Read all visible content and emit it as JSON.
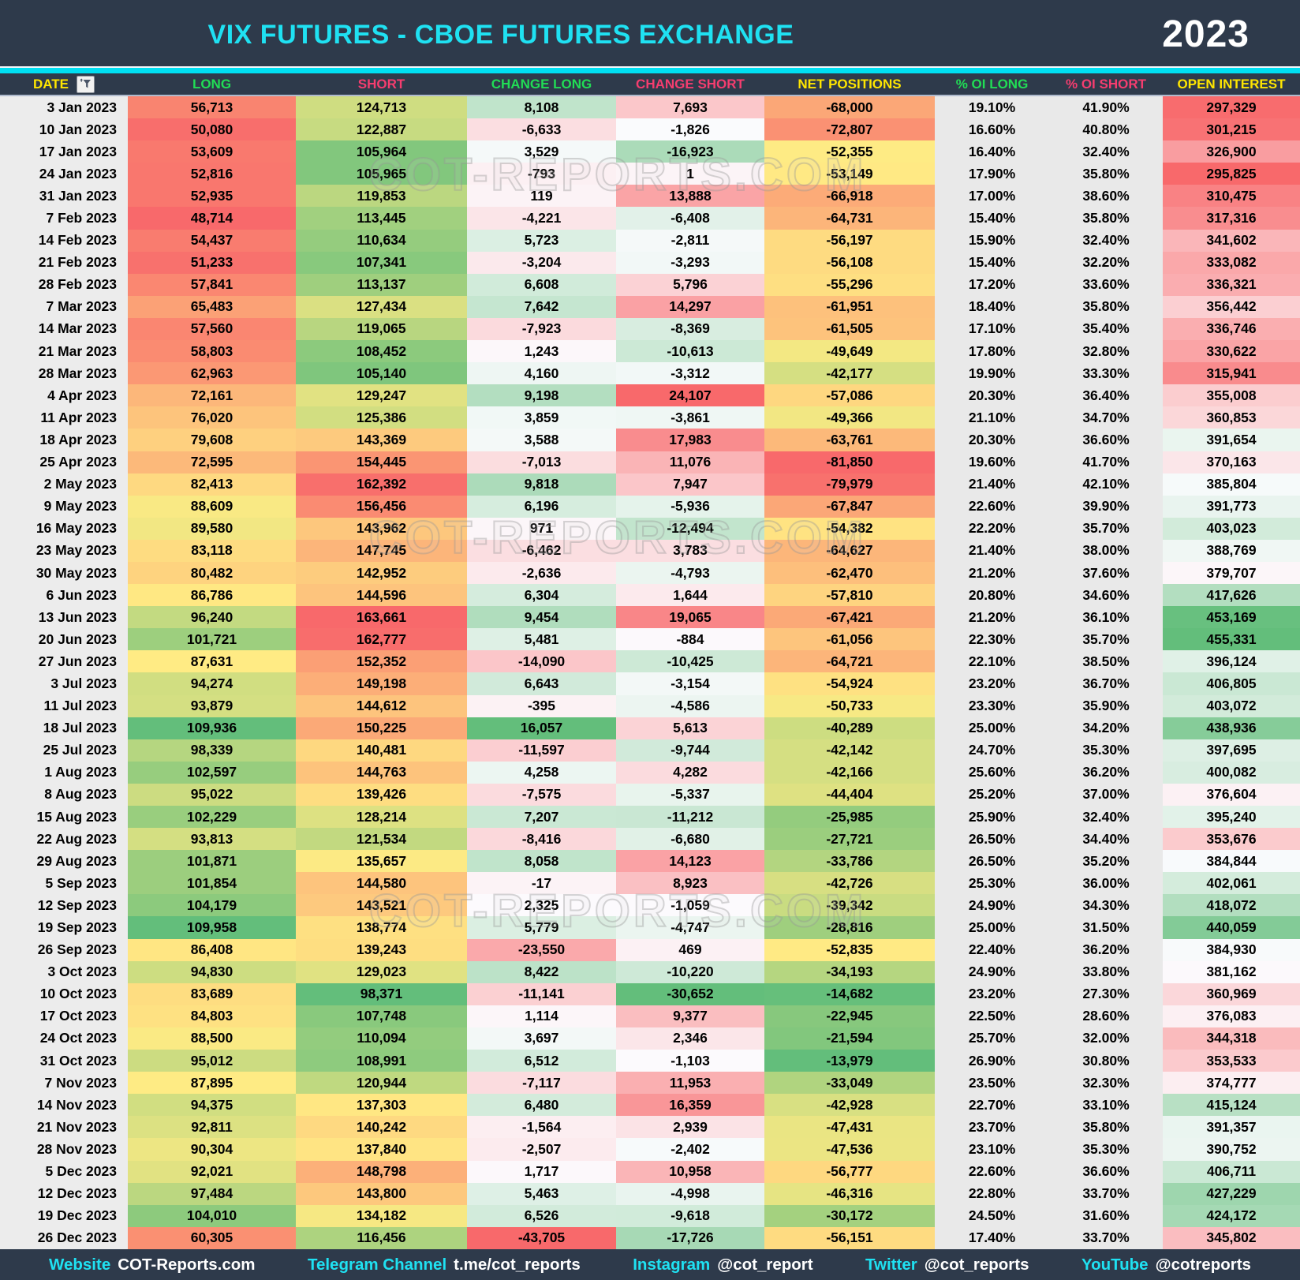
{
  "header": {
    "title": "VIX FUTURES - CBOE FUTURES EXCHANGE",
    "year": "2023"
  },
  "watermark": {
    "text": "COT-REPORTS.COM"
  },
  "colors": {
    "band": "#2E3A4B",
    "accent_cyan": "#00DFF2",
    "header_yellow": "#FFE600",
    "header_green": "#21DD55",
    "header_pink": "#F53D6F",
    "scale_red": "#F8696B",
    "scale_yellow": "#FFEB84",
    "scale_green": "#63BE7B",
    "scale_white": "#FCFCFF"
  },
  "columns": [
    {
      "key": "date",
      "label": "DATE",
      "color": "#FFE600",
      "scale": "none",
      "has_filter": true
    },
    {
      "key": "long",
      "label": "LONG",
      "color": "#21DD55",
      "scale": "ryg"
    },
    {
      "key": "short",
      "label": "SHORT",
      "color": "#F53D6F",
      "scale": "gyr"
    },
    {
      "key": "change_long",
      "label": "CHANGE LONG",
      "color": "#21DD55",
      "scale": "rwg"
    },
    {
      "key": "change_short",
      "label": "CHANGE SHORT",
      "color": "#F53D6F",
      "scale": "gwr"
    },
    {
      "key": "net_positions",
      "label": "NET POSITIONS",
      "color": "#FFE600",
      "scale": "ryg"
    },
    {
      "key": "pct_oi_long",
      "label": "% OI LONG",
      "color": "#21DD55",
      "scale": "gray"
    },
    {
      "key": "pct_oi_short",
      "label": "% OI SHORT",
      "color": "#F53D6F",
      "scale": "gray"
    },
    {
      "key": "open_interest",
      "label": "OPEN INTEREST",
      "color": "#FFE600",
      "scale": "rwg"
    }
  ],
  "chart_data": {
    "type": "table",
    "title": "VIX FUTURES - CBOE FUTURES EXCHANGE 2023",
    "rows": [
      [
        "3 Jan 2023",
        "56,713",
        "124,713",
        "8,108",
        "7,693",
        "-68,000",
        "19.10%",
        "41.90%",
        "297,329"
      ],
      [
        "10 Jan 2023",
        "50,080",
        "122,887",
        "-6,633",
        "-1,826",
        "-72,807",
        "16.60%",
        "40.80%",
        "301,215"
      ],
      [
        "17 Jan 2023",
        "53,609",
        "105,964",
        "3,529",
        "-16,923",
        "-52,355",
        "16.40%",
        "32.40%",
        "326,900"
      ],
      [
        "24 Jan 2023",
        "52,816",
        "105,965",
        "-793",
        "1",
        "-53,149",
        "17.90%",
        "35.80%",
        "295,825"
      ],
      [
        "31 Jan 2023",
        "52,935",
        "119,853",
        "119",
        "13,888",
        "-66,918",
        "17.00%",
        "38.60%",
        "310,475"
      ],
      [
        "7 Feb 2023",
        "48,714",
        "113,445",
        "-4,221",
        "-6,408",
        "-64,731",
        "15.40%",
        "35.80%",
        "317,316"
      ],
      [
        "14 Feb 2023",
        "54,437",
        "110,634",
        "5,723",
        "-2,811",
        "-56,197",
        "15.90%",
        "32.40%",
        "341,602"
      ],
      [
        "21 Feb 2023",
        "51,233",
        "107,341",
        "-3,204",
        "-3,293",
        "-56,108",
        "15.40%",
        "32.20%",
        "333,082"
      ],
      [
        "28 Feb 2023",
        "57,841",
        "113,137",
        "6,608",
        "5,796",
        "-55,296",
        "17.20%",
        "33.60%",
        "336,321"
      ],
      [
        "7 Mar 2023",
        "65,483",
        "127,434",
        "7,642",
        "14,297",
        "-61,951",
        "18.40%",
        "35.80%",
        "356,442"
      ],
      [
        "14 Mar 2023",
        "57,560",
        "119,065",
        "-7,923",
        "-8,369",
        "-61,505",
        "17.10%",
        "35.40%",
        "336,746"
      ],
      [
        "21 Mar 2023",
        "58,803",
        "108,452",
        "1,243",
        "-10,613",
        "-49,649",
        "17.80%",
        "32.80%",
        "330,622"
      ],
      [
        "28 Mar 2023",
        "62,963",
        "105,140",
        "4,160",
        "-3,312",
        "-42,177",
        "19.90%",
        "33.30%",
        "315,941"
      ],
      [
        "4 Apr 2023",
        "72,161",
        "129,247",
        "9,198",
        "24,107",
        "-57,086",
        "20.30%",
        "36.40%",
        "355,008"
      ],
      [
        "11 Apr 2023",
        "76,020",
        "125,386",
        "3,859",
        "-3,861",
        "-49,366",
        "21.10%",
        "34.70%",
        "360,853"
      ],
      [
        "18 Apr 2023",
        "79,608",
        "143,369",
        "3,588",
        "17,983",
        "-63,761",
        "20.30%",
        "36.60%",
        "391,654"
      ],
      [
        "25 Apr 2023",
        "72,595",
        "154,445",
        "-7,013",
        "11,076",
        "-81,850",
        "19.60%",
        "41.70%",
        "370,163"
      ],
      [
        "2 May 2023",
        "82,413",
        "162,392",
        "9,818",
        "7,947",
        "-79,979",
        "21.40%",
        "42.10%",
        "385,804"
      ],
      [
        "9 May 2023",
        "88,609",
        "156,456",
        "6,196",
        "-5,936",
        "-67,847",
        "22.60%",
        "39.90%",
        "391,773"
      ],
      [
        "16 May 2023",
        "89,580",
        "143,962",
        "971",
        "-12,494",
        "-54,382",
        "22.20%",
        "35.70%",
        "403,023"
      ],
      [
        "23 May 2023",
        "83,118",
        "147,745",
        "-6,462",
        "3,783",
        "-64,627",
        "21.40%",
        "38.00%",
        "388,769"
      ],
      [
        "30 May 2023",
        "80,482",
        "142,952",
        "-2,636",
        "-4,793",
        "-62,470",
        "21.20%",
        "37.60%",
        "379,707"
      ],
      [
        "6 Jun 2023",
        "86,786",
        "144,596",
        "6,304",
        "1,644",
        "-57,810",
        "20.80%",
        "34.60%",
        "417,626"
      ],
      [
        "13 Jun 2023",
        "96,240",
        "163,661",
        "9,454",
        "19,065",
        "-67,421",
        "21.20%",
        "36.10%",
        "453,169"
      ],
      [
        "20 Jun 2023",
        "101,721",
        "162,777",
        "5,481",
        "-884",
        "-61,056",
        "22.30%",
        "35.70%",
        "455,331"
      ],
      [
        "27 Jun 2023",
        "87,631",
        "152,352",
        "-14,090",
        "-10,425",
        "-64,721",
        "22.10%",
        "38.50%",
        "396,124"
      ],
      [
        "3 Jul 2023",
        "94,274",
        "149,198",
        "6,643",
        "-3,154",
        "-54,924",
        "23.20%",
        "36.70%",
        "406,805"
      ],
      [
        "11 Jul 2023",
        "93,879",
        "144,612",
        "-395",
        "-4,586",
        "-50,733",
        "23.30%",
        "35.90%",
        "403,072"
      ],
      [
        "18 Jul 2023",
        "109,936",
        "150,225",
        "16,057",
        "5,613",
        "-40,289",
        "25.00%",
        "34.20%",
        "438,936"
      ],
      [
        "25 Jul 2023",
        "98,339",
        "140,481",
        "-11,597",
        "-9,744",
        "-42,142",
        "24.70%",
        "35.30%",
        "397,695"
      ],
      [
        "1 Aug 2023",
        "102,597",
        "144,763",
        "4,258",
        "4,282",
        "-42,166",
        "25.60%",
        "36.20%",
        "400,082"
      ],
      [
        "8 Aug 2023",
        "95,022",
        "139,426",
        "-7,575",
        "-5,337",
        "-44,404",
        "25.20%",
        "37.00%",
        "376,604"
      ],
      [
        "15 Aug 2023",
        "102,229",
        "128,214",
        "7,207",
        "-11,212",
        "-25,985",
        "25.90%",
        "32.40%",
        "395,240"
      ],
      [
        "22 Aug 2023",
        "93,813",
        "121,534",
        "-8,416",
        "-6,680",
        "-27,721",
        "26.50%",
        "34.40%",
        "353,676"
      ],
      [
        "29 Aug 2023",
        "101,871",
        "135,657",
        "8,058",
        "14,123",
        "-33,786",
        "26.50%",
        "35.20%",
        "384,844"
      ],
      [
        "5 Sep 2023",
        "101,854",
        "144,580",
        "-17",
        "8,923",
        "-42,726",
        "25.30%",
        "36.00%",
        "402,061"
      ],
      [
        "12 Sep 2023",
        "104,179",
        "143,521",
        "2,325",
        "-1,059",
        "-39,342",
        "24.90%",
        "34.30%",
        "418,072"
      ],
      [
        "19 Sep 2023",
        "109,958",
        "138,774",
        "5,779",
        "-4,747",
        "-28,816",
        "25.00%",
        "31.50%",
        "440,059"
      ],
      [
        "26 Sep 2023",
        "86,408",
        "139,243",
        "-23,550",
        "469",
        "-52,835",
        "22.40%",
        "36.20%",
        "384,930"
      ],
      [
        "3 Oct 2023",
        "94,830",
        "129,023",
        "8,422",
        "-10,220",
        "-34,193",
        "24.90%",
        "33.80%",
        "381,162"
      ],
      [
        "10 Oct 2023",
        "83,689",
        "98,371",
        "-11,141",
        "-30,652",
        "-14,682",
        "23.20%",
        "27.30%",
        "360,969"
      ],
      [
        "17 Oct 2023",
        "84,803",
        "107,748",
        "1,114",
        "9,377",
        "-22,945",
        "22.50%",
        "28.60%",
        "376,083"
      ],
      [
        "24 Oct 2023",
        "88,500",
        "110,094",
        "3,697",
        "2,346",
        "-21,594",
        "25.70%",
        "32.00%",
        "344,318"
      ],
      [
        "31 Oct 2023",
        "95,012",
        "108,991",
        "6,512",
        "-1,103",
        "-13,979",
        "26.90%",
        "30.80%",
        "353,533"
      ],
      [
        "7 Nov 2023",
        "87,895",
        "120,944",
        "-7,117",
        "11,953",
        "-33,049",
        "23.50%",
        "32.30%",
        "374,777"
      ],
      [
        "14 Nov 2023",
        "94,375",
        "137,303",
        "6,480",
        "16,359",
        "-42,928",
        "22.70%",
        "33.10%",
        "415,124"
      ],
      [
        "21 Nov 2023",
        "92,811",
        "140,242",
        "-1,564",
        "2,939",
        "-47,431",
        "23.70%",
        "35.80%",
        "391,357"
      ],
      [
        "28 Nov 2023",
        "90,304",
        "137,840",
        "-2,507",
        "-2,402",
        "-47,536",
        "23.10%",
        "35.30%",
        "390,752"
      ],
      [
        "5 Dec 2023",
        "92,021",
        "148,798",
        "1,717",
        "10,958",
        "-56,777",
        "22.60%",
        "36.60%",
        "406,711"
      ],
      [
        "12 Dec 2023",
        "97,484",
        "143,800",
        "5,463",
        "-4,998",
        "-46,316",
        "22.80%",
        "33.70%",
        "427,229"
      ],
      [
        "19 Dec 2023",
        "104,010",
        "134,182",
        "6,526",
        "-9,618",
        "-30,172",
        "24.50%",
        "31.60%",
        "424,172"
      ],
      [
        "26 Dec 2023",
        "60,305",
        "116,456",
        "-43,705",
        "-17,726",
        "-56,151",
        "17.40%",
        "33.70%",
        "345,802"
      ]
    ]
  },
  "footer": {
    "items": [
      {
        "label": "Website",
        "value": "COT-Reports.com"
      },
      {
        "label": "Telegram Channel",
        "value": "t.me/cot_reports"
      },
      {
        "label": "Instagram",
        "value": "@cot_report"
      },
      {
        "label": "Twitter",
        "value": "@cot_reports"
      },
      {
        "label": "YouTube",
        "value": "@cotreports"
      }
    ]
  }
}
